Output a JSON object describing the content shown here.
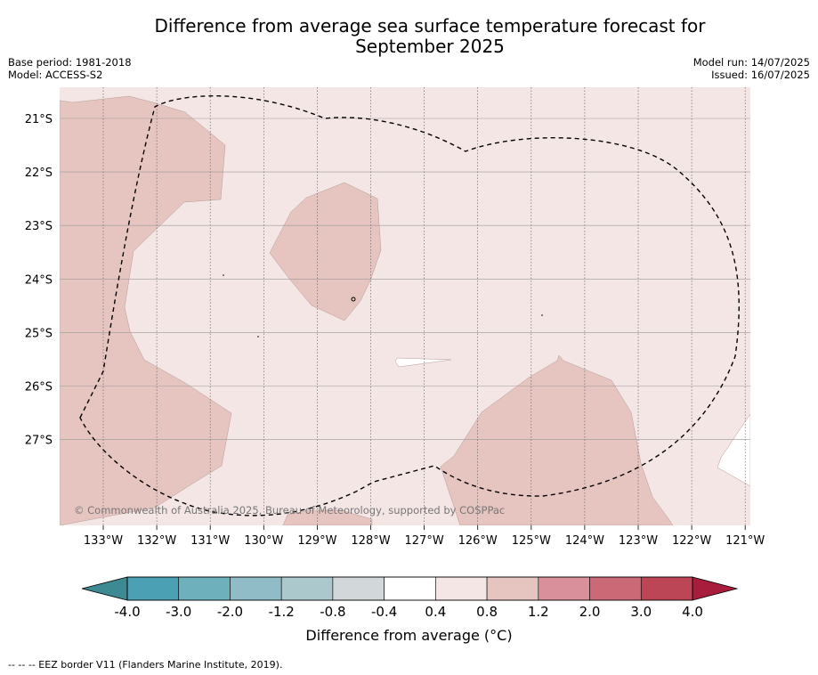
{
  "title_line1": "Difference from average sea surface temperature forecast for",
  "title_line2": "September 2025",
  "base_period": "Base period: 1981-2018",
  "model": "Model: ACCESS-S2",
  "model_run": "Model run: 14/07/2025",
  "issued": "Issued: 16/07/2025",
  "copyright": "© Commonwealth of Australia 2025, Bureau of Meteorology, supported by COSPPac",
  "footnote": "--  --  -- EEZ border V11 (Flanders Marine Institute, 2019).",
  "map": {
    "lat_labels": [
      "21°S",
      "22°S",
      "23°S",
      "24°S",
      "25°S",
      "26°S",
      "27°S"
    ],
    "lon_labels": [
      "133°W",
      "132°W",
      "131°W",
      "130°W",
      "129°W",
      "128°W",
      "127°W",
      "126°W",
      "125°W",
      "124°W",
      "123°W",
      "122°W",
      "121°W"
    ],
    "background_color": "#f4e6e5",
    "anomaly_0_8_to_1_2_color": "#e6c5c1",
    "below_0_4_color": "#ffffff"
  },
  "colorbar": {
    "title": "Difference from average (°C)",
    "ticks": [
      "-4.0",
      "-3.0",
      "-2.0",
      "-1.2",
      "-0.8",
      "-0.4",
      "0.4",
      "0.8",
      "1.2",
      "2.0",
      "3.0",
      "4.0"
    ],
    "colors": [
      "#4ba0b3",
      "#6fb0bd",
      "#8fbcc7",
      "#abc9cd",
      "#d2d8da",
      "#ffffff",
      "#f4e6e5",
      "#e6c5c1",
      "#d9909a",
      "#cb6a76",
      "#bd4656"
    ],
    "under_color": "#3d8a92",
    "over_color": "#a81d3b"
  }
}
